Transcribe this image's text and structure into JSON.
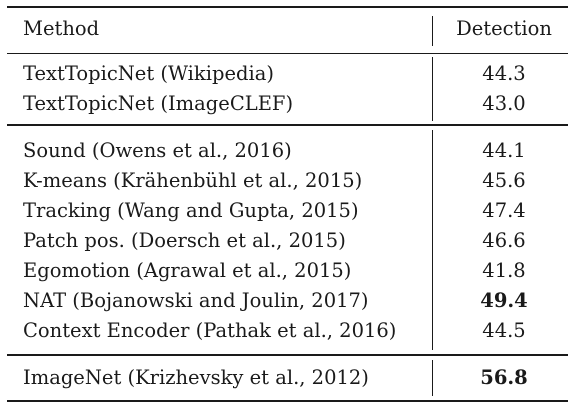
{
  "table": {
    "header": {
      "method": "Method",
      "detection": "Detection"
    },
    "section1": [
      {
        "method": "TextTopicNet (Wikipedia)",
        "detection": "44.3",
        "bold": false
      },
      {
        "method": "TextTopicNet (ImageCLEF)",
        "detection": "43.0",
        "bold": false
      }
    ],
    "section2": [
      {
        "method": "Sound  (Owens et al., 2016)",
        "detection": "44.1",
        "bold": false
      },
      {
        "method": "K-means (Krähenbühl et al., 2015)",
        "detection": "45.6",
        "bold": false
      },
      {
        "method": "Tracking (Wang and Gupta, 2015)",
        "detection": "47.4",
        "bold": false
      },
      {
        "method": "Patch pos. (Doersch et al., 2015)",
        "detection": "46.6",
        "bold": false
      },
      {
        "method": "Egomotion (Agrawal et al., 2015)",
        "detection": "41.8",
        "bold": false
      },
      {
        "method": "NAT (Bojanowski and Joulin, 2017)",
        "detection": "49.4",
        "bold": true
      },
      {
        "method": "Context Encoder (Pathak et al., 2016)",
        "detection": "44.5",
        "bold": false
      }
    ],
    "section3": [
      {
        "method": "ImageNet (Krizhevsky et al., 2012)",
        "detection": "56.8",
        "bold": true
      }
    ]
  }
}
